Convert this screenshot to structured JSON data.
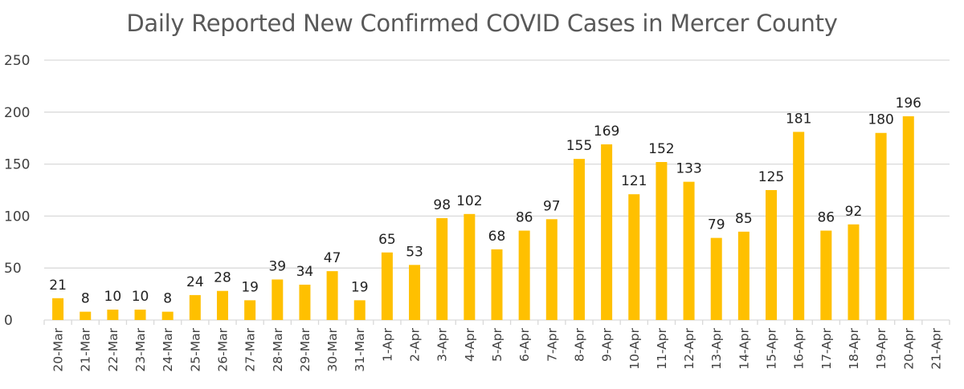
{
  "chart_data": {
    "type": "bar",
    "title": "Daily Reported New Confirmed COVID Cases in Mercer County",
    "xlabel": "",
    "ylabel": "",
    "ylim": [
      0,
      250
    ],
    "yticks": [
      0,
      50,
      100,
      150,
      200,
      250
    ],
    "grid": true,
    "legend": "none",
    "bar_color": "#FFC000",
    "categories": [
      "20-Mar",
      "21-Mar",
      "22-Mar",
      "23-Mar",
      "24-Mar",
      "25-Mar",
      "26-Mar",
      "27-Mar",
      "28-Mar",
      "29-Mar",
      "30-Mar",
      "31-Mar",
      "1-Apr",
      "2-Apr",
      "3-Apr",
      "4-Apr",
      "5-Apr",
      "6-Apr",
      "7-Apr",
      "8-Apr",
      "9-Apr",
      "10-Apr",
      "11-Apr",
      "12-Apr",
      "13-Apr",
      "14-Apr",
      "15-Apr",
      "16-Apr",
      "17-Apr",
      "18-Apr",
      "19-Apr",
      "20-Apr",
      "21-Apr"
    ],
    "values": [
      21,
      8,
      10,
      10,
      8,
      24,
      28,
      19,
      39,
      34,
      47,
      19,
      65,
      53,
      98,
      102,
      68,
      86,
      97,
      155,
      169,
      121,
      152,
      133,
      79,
      85,
      125,
      181,
      86,
      92,
      180,
      196,
      null
    ]
  }
}
